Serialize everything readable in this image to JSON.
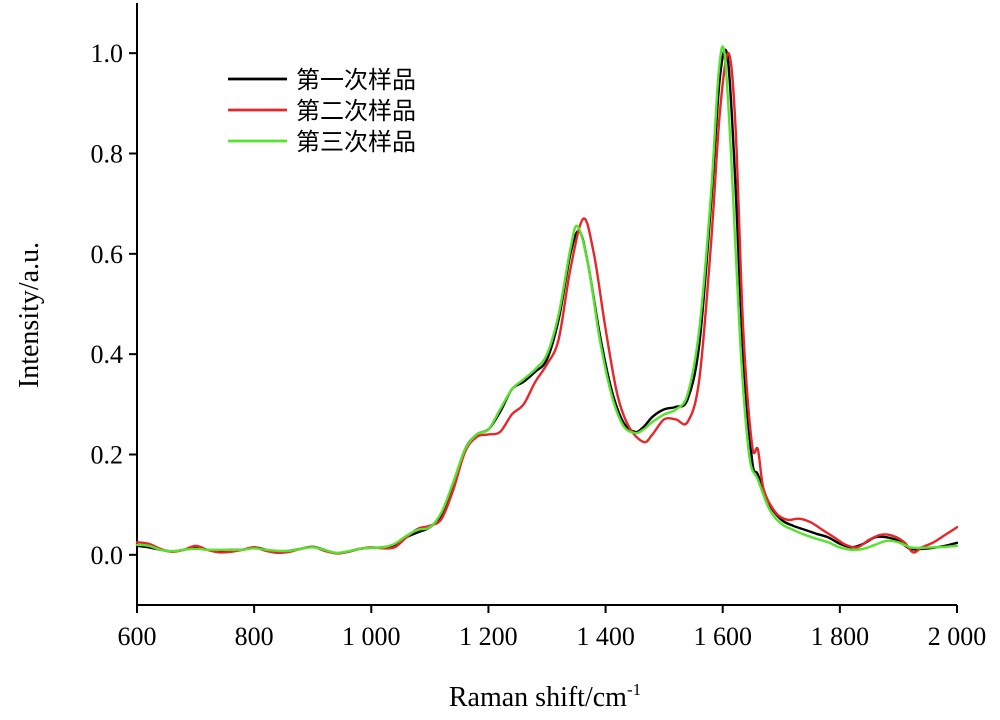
{
  "chart_data": {
    "type": "line",
    "title": "",
    "xlabel": "Raman shift/cm",
    "xlabel_superscript": "-1",
    "ylabel": "Intensity/a.u.",
    "xlim": [
      600,
      2000
    ],
    "ylim": [
      -0.1,
      1.1
    ],
    "xticks": [
      600,
      800,
      1000,
      1200,
      1400,
      1600,
      1800,
      2000
    ],
    "xtick_labels": [
      "600",
      "800",
      "1 000",
      "1 200",
      "1 400",
      "1 600",
      "1 800",
      "2 000"
    ],
    "yticks": [
      0.0,
      0.2,
      0.4,
      0.6,
      0.8,
      1.0
    ],
    "ytick_labels": [
      "0.0",
      "0.2",
      "0.4",
      "0.6",
      "0.8",
      "1.0"
    ],
    "grid": false,
    "legend_position": "top-left",
    "series": [
      {
        "name": "第一次样品",
        "color": "#000000",
        "x": [
          600,
          620,
          640,
          660,
          680,
          700,
          720,
          740,
          760,
          780,
          800,
          820,
          840,
          860,
          880,
          900,
          920,
          940,
          960,
          980,
          1000,
          1020,
          1040,
          1060,
          1080,
          1100,
          1120,
          1140,
          1160,
          1180,
          1200,
          1220,
          1240,
          1260,
          1280,
          1300,
          1320,
          1340,
          1355,
          1370,
          1390,
          1410,
          1430,
          1450,
          1465,
          1480,
          1500,
          1520,
          1540,
          1560,
          1580,
          1595,
          1608,
          1620,
          1635,
          1650,
          1660,
          1680,
          1700,
          1720,
          1740,
          1760,
          1780,
          1800,
          1820,
          1840,
          1860,
          1880,
          1900,
          1920,
          1940,
          1960,
          1980,
          2000
        ],
        "y": [
          0.018,
          0.015,
          0.01,
          0.007,
          0.01,
          0.014,
          0.01,
          0.008,
          0.01,
          0.01,
          0.015,
          0.01,
          0.006,
          0.008,
          0.012,
          0.016,
          0.01,
          0.003,
          0.006,
          0.012,
          0.014,
          0.015,
          0.02,
          0.035,
          0.045,
          0.055,
          0.08,
          0.14,
          0.21,
          0.24,
          0.25,
          0.285,
          0.33,
          0.345,
          0.365,
          0.39,
          0.47,
          0.6,
          0.645,
          0.58,
          0.44,
          0.33,
          0.265,
          0.245,
          0.255,
          0.275,
          0.29,
          0.295,
          0.31,
          0.42,
          0.7,
          0.95,
          0.995,
          0.78,
          0.4,
          0.19,
          0.16,
          0.1,
          0.07,
          0.058,
          0.05,
          0.042,
          0.035,
          0.022,
          0.015,
          0.022,
          0.035,
          0.035,
          0.028,
          0.012,
          0.012,
          0.014,
          0.018,
          0.024
        ]
      },
      {
        "name": "第二次样品",
        "color": "#e8262a",
        "x": [
          600,
          620,
          640,
          660,
          680,
          700,
          720,
          740,
          760,
          780,
          800,
          820,
          840,
          860,
          880,
          900,
          920,
          940,
          960,
          980,
          1000,
          1020,
          1040,
          1060,
          1080,
          1100,
          1120,
          1140,
          1160,
          1180,
          1200,
          1220,
          1240,
          1260,
          1280,
          1300,
          1320,
          1340,
          1362,
          1380,
          1400,
          1420,
          1440,
          1465,
          1480,
          1500,
          1520,
          1540,
          1560,
          1580,
          1595,
          1610,
          1622,
          1635,
          1650,
          1660,
          1670,
          1690,
          1710,
          1730,
          1750,
          1770,
          1790,
          1810,
          1830,
          1850,
          1870,
          1890,
          1910,
          1925,
          1940,
          1960,
          1980,
          2000
        ],
        "y": [
          0.025,
          0.022,
          0.012,
          0.006,
          0.01,
          0.018,
          0.01,
          0.005,
          0.006,
          0.01,
          0.015,
          0.008,
          0.004,
          0.006,
          0.012,
          0.016,
          0.008,
          0.003,
          0.006,
          0.012,
          0.015,
          0.013,
          0.015,
          0.035,
          0.052,
          0.058,
          0.072,
          0.13,
          0.205,
          0.235,
          0.24,
          0.245,
          0.28,
          0.3,
          0.345,
          0.38,
          0.43,
          0.57,
          0.67,
          0.6,
          0.45,
          0.32,
          0.255,
          0.225,
          0.24,
          0.27,
          0.27,
          0.265,
          0.35,
          0.62,
          0.88,
          1.0,
          0.85,
          0.45,
          0.22,
          0.21,
          0.13,
          0.085,
          0.07,
          0.072,
          0.065,
          0.05,
          0.035,
          0.02,
          0.015,
          0.03,
          0.04,
          0.038,
          0.025,
          0.005,
          0.015,
          0.025,
          0.04,
          0.055
        ]
      },
      {
        "name": "第三次样品",
        "color": "#55e32c",
        "x": [
          600,
          620,
          640,
          660,
          680,
          700,
          720,
          740,
          760,
          780,
          800,
          820,
          840,
          860,
          880,
          900,
          920,
          940,
          960,
          980,
          1000,
          1020,
          1040,
          1060,
          1080,
          1100,
          1120,
          1140,
          1160,
          1180,
          1200,
          1220,
          1240,
          1260,
          1280,
          1300,
          1320,
          1340,
          1352,
          1370,
          1390,
          1410,
          1430,
          1450,
          1465,
          1480,
          1500,
          1520,
          1540,
          1560,
          1580,
          1593,
          1603,
          1615,
          1630,
          1645,
          1660,
          1680,
          1700,
          1720,
          1740,
          1760,
          1780,
          1800,
          1820,
          1840,
          1860,
          1880,
          1900,
          1920,
          1940,
          1960,
          1980,
          2000
        ],
        "y": [
          0.02,
          0.018,
          0.01,
          0.007,
          0.01,
          0.012,
          0.01,
          0.01,
          0.01,
          0.01,
          0.013,
          0.01,
          0.008,
          0.008,
          0.012,
          0.015,
          0.01,
          0.004,
          0.007,
          0.012,
          0.014,
          0.015,
          0.022,
          0.038,
          0.05,
          0.055,
          0.085,
          0.145,
          0.21,
          0.24,
          0.25,
          0.29,
          0.33,
          0.35,
          0.37,
          0.4,
          0.48,
          0.61,
          0.655,
          0.58,
          0.43,
          0.32,
          0.258,
          0.243,
          0.25,
          0.265,
          0.28,
          0.29,
          0.32,
          0.45,
          0.72,
          0.96,
          1.0,
          0.78,
          0.42,
          0.2,
          0.15,
          0.09,
          0.062,
          0.05,
          0.04,
          0.032,
          0.025,
          0.015,
          0.01,
          0.012,
          0.02,
          0.028,
          0.025,
          0.015,
          0.014,
          0.015,
          0.016,
          0.018
        ]
      }
    ]
  }
}
